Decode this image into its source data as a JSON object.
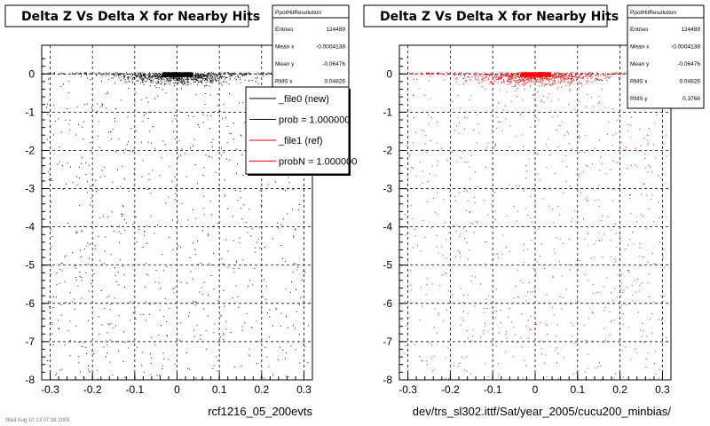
{
  "chart_data": [
    {
      "type": "scatter",
      "title": "Delta Z Vs Delta X for Nearby Hits",
      "xlabel": "rcf1216_05_200evts",
      "ylabel": "",
      "xlim": [
        -0.32,
        0.32
      ],
      "ylim": [
        -8,
        0.75
      ],
      "xticks": [
        -0.3,
        -0.2,
        -0.1,
        0,
        0.1,
        0.2,
        0.3
      ],
      "yticks": [
        0,
        -1,
        -2,
        -3,
        -4,
        -5,
        -6,
        -7,
        -8
      ],
      "grid": true,
      "marker_color": "#000000",
      "stats": {
        "name": "PpotHitResolution",
        "entries_label": "Entries",
        "entries": "124489",
        "mean_x_label": "Mean x",
        "mean_x": "-0.0004138",
        "mean_y_label": "Mean y",
        "mean_y": "-0.06476",
        "rms_x_label": "RMS x",
        "rms_x": "0.04826"
      },
      "distribution": {
        "x_mean": 0.0,
        "x_rms": 0.04826,
        "y_mean": -0.06476,
        "y_rms": 0.3768,
        "core_y_range": [
          -0.05,
          0.05
        ]
      },
      "legend": {
        "placement": "top-right",
        "entries": [
          {
            "label": "_file0 (new)",
            "color": "#000000"
          },
          {
            "label": "prob = 1.000000",
            "color": "#000000"
          },
          {
            "label": "_file1 (ref)",
            "color": "#ff0000"
          },
          {
            "label": "probN = 1.000000",
            "color": "#ff0000"
          }
        ]
      }
    },
    {
      "type": "scatter",
      "title": "Delta Z Vs Delta X for Nearby Hits",
      "xlabel": "dev/trs_sl302.ittf/Sat/year_2005/cucu200_minbias/",
      "ylabel": "",
      "xlim": [
        -0.32,
        0.32
      ],
      "ylim": [
        -8,
        0.75
      ],
      "xticks": [
        -0.3,
        -0.2,
        -0.1,
        0,
        0.1,
        0.2,
        0.3
      ],
      "yticks": [
        0,
        -1,
        -2,
        -3,
        -4,
        -5,
        -6,
        -7,
        -8
      ],
      "grid": true,
      "marker_color": "#ff0000",
      "stats": {
        "name": "PpotHitResolution",
        "entries_label": "Entries",
        "entries": "124489",
        "mean_x_label": "Mean x",
        "mean_x": "-0.0004138",
        "mean_y_label": "Mean y",
        "mean_y": "-0.06476",
        "rms_x_label": "RMS x",
        "rms_x": "0.04826",
        "rms_y_label": "RMS y",
        "rms_y": "0.3768"
      },
      "distribution": {
        "x_mean": 0.0,
        "x_rms": 0.04826,
        "y_mean": -0.06476,
        "y_rms": 0.3768,
        "core_y_range": [
          -0.05,
          0.05
        ]
      }
    }
  ],
  "footer_text": "Wed Aug 10 13:07:36 2005"
}
